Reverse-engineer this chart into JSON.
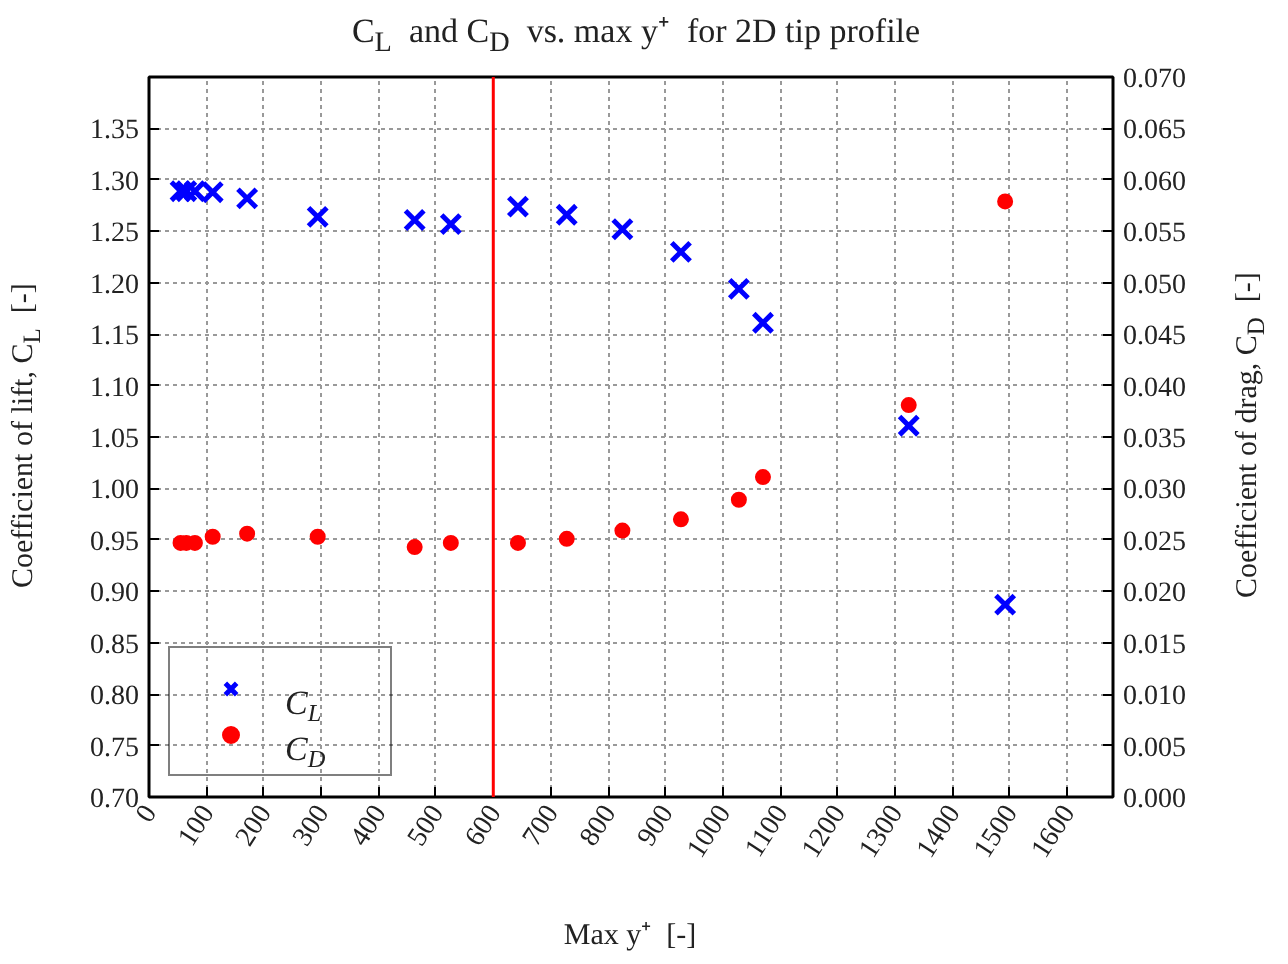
{
  "chart_data": {
    "type": "scatter",
    "title": "C$_{L}$  and C$_{D}$  vs. max y⁺  for 2D tip profile",
    "xlabel": "Max y⁺  [-]",
    "ylabel": "Coefficient of lift, C$_{L}$  [-]",
    "y2label": "Coefficient of drag, C$_{D}$  [-]",
    "xlim": [
      0,
      1680
    ],
    "xticks": [
      0,
      100,
      200,
      300,
      400,
      500,
      600,
      700,
      800,
      900,
      1000,
      1100,
      1200,
      1300,
      1400,
      1500,
      1600
    ],
    "ylim": [
      0.7,
      1.4
    ],
    "yticks": [
      {
        "value": 0.7,
        "label": "0.70"
      },
      {
        "value": 0.75,
        "label": "0.75"
      },
      {
        "value": 0.8,
        "label": "0.80"
      },
      {
        "value": 0.85,
        "label": "0.85"
      },
      {
        "value": 0.9,
        "label": "0.90"
      },
      {
        "value": 0.95,
        "label": "0.95"
      },
      {
        "value": 1.0,
        "label": "1.00"
      },
      {
        "value": 1.05,
        "label": "1.05"
      },
      {
        "value": 1.1,
        "label": "1.10"
      },
      {
        "value": 1.15,
        "label": "1.15"
      },
      {
        "value": 1.2,
        "label": "1.20"
      },
      {
        "value": 1.25,
        "label": "1.25"
      },
      {
        "value": 1.3,
        "label": "1.30"
      },
      {
        "value": 1.35,
        "label": "1.35"
      }
    ],
    "y2lim": [
      0,
      0.07
    ],
    "y2ticks": [
      {
        "value": 0,
        "label": "0.000"
      },
      {
        "value": 0.005,
        "label": "0.005"
      },
      {
        "value": 0.01,
        "label": "0.010"
      },
      {
        "value": 0.015,
        "label": "0.015"
      },
      {
        "value": 0.02,
        "label": "0.020"
      },
      {
        "value": 0.025,
        "label": "0.025"
      },
      {
        "value": 0.03,
        "label": "0.030"
      },
      {
        "value": 0.035,
        "label": "0.035"
      },
      {
        "value": 0.04,
        "label": "0.040"
      },
      {
        "value": 0.045,
        "label": "0.045"
      },
      {
        "value": 0.05,
        "label": "0.050"
      },
      {
        "value": 0.055,
        "label": "0.055"
      },
      {
        "value": 0.06,
        "label": "0.060"
      },
      {
        "value": 0.065,
        "label": "0.065"
      },
      {
        "value": 0.07,
        "label": "0.070"
      }
    ],
    "grid": true,
    "legend": "bottom left",
    "series": [
      {
        "name": "C$_{L}$",
        "color": "#0000ff",
        "marker": "cross",
        "x": [
          55,
          65,
          80,
          111,
          171,
          294,
          463,
          526,
          643,
          728,
          825,
          927,
          1028,
          1070,
          1324,
          1492
        ],
        "values": [
          1.289,
          1.289,
          1.289,
          1.288,
          1.282,
          1.264,
          1.261,
          1.257,
          1.274,
          1.266,
          1.252,
          1.23,
          1.194,
          1.161,
          1.061,
          0.887
        ]
      },
      {
        "name": "C$_{D}$",
        "color": "#ff0000",
        "marker": "circle",
        "axis": "y2",
        "x": [
          55,
          65,
          80,
          111,
          171,
          294,
          463,
          526,
          643,
          728,
          825,
          927,
          1028,
          1070,
          1324,
          1492
        ],
        "values": [
          0.0247,
          0.0247,
          0.0247,
          0.0253,
          0.0256,
          0.0253,
          0.0243,
          0.0247,
          0.0247,
          0.0251,
          0.0259,
          0.027,
          0.0289,
          0.0311,
          0.0381,
          0.0579
        ]
      }
    ],
    "ref_lines": [
      {
        "axis": "x",
        "value": 600,
        "color": "#ff0000"
      }
    ]
  }
}
